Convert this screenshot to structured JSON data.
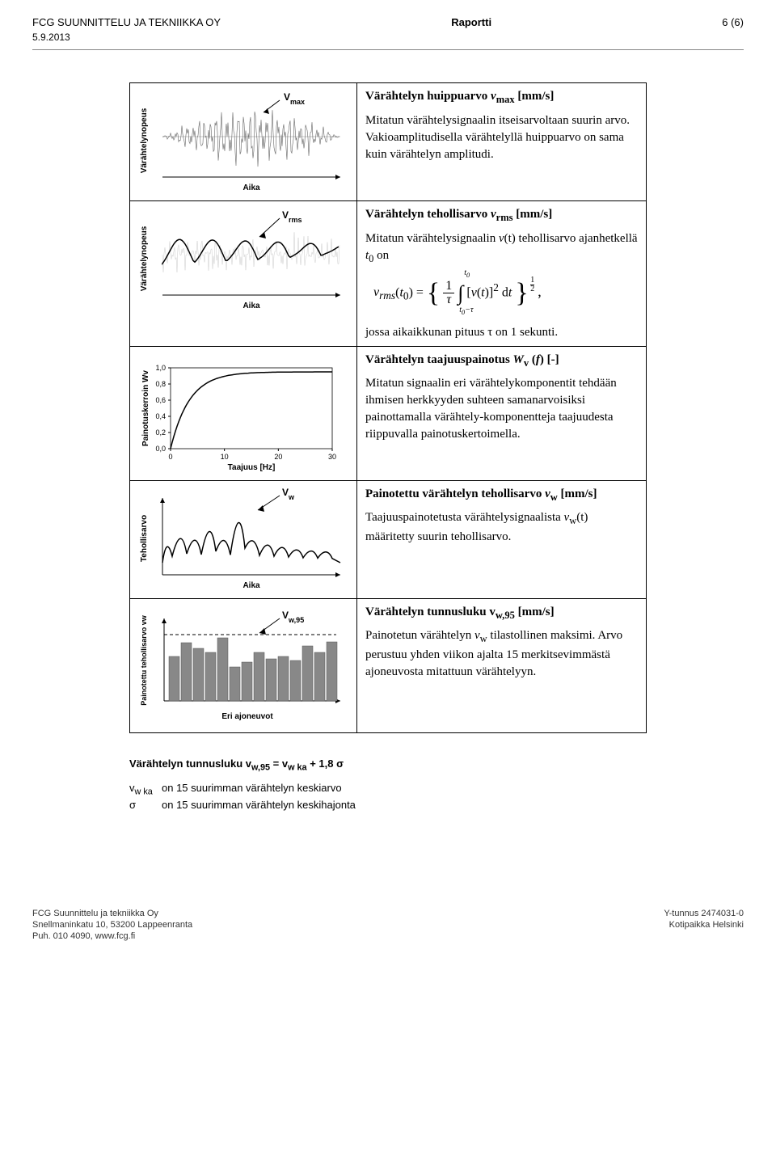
{
  "header": {
    "org": "FCG SUUNNITTELU JA TEKNIIKKA OY",
    "doc_type": "Raportti",
    "page": "6 (6)",
    "date": "5.9.2013"
  },
  "rows": [
    {
      "chart": {
        "type": "waveform",
        "ylabel": "Värähtelynopeus",
        "xlabel": "Aika",
        "annotation": "Vmax",
        "annotation_sub": "max"
      },
      "title_html": "Värähtelyn huippuarvo <span class='ital'>v</span><sub>max</sub> [mm/s]",
      "body_html": "Mitatun värähtelysignaalin itseisarvoltaan suurin arvo. Vakioamplitudisella värähtelyllä huippuarvo on sama kuin värähtelyn amplitudi."
    },
    {
      "chart": {
        "type": "rms",
        "ylabel": "Värähtelynopeus",
        "xlabel": "Aika",
        "annotation": "Vrms",
        "annotation_sub": "rms"
      },
      "title_html": "Värähtelyn tehollisarvo <span class='ital'>v</span><sub>rms</sub> [mm/s]",
      "body_html": "Mitatun värähtelysignaalin <span class='ital'>v</span>(t) tehollisarvo ajanhetkellä <span class='ital'>t</span><sub>0</sub> on",
      "has_formula": true,
      "tail": "jossa aikaikkunan pituus τ on 1 sekunti."
    },
    {
      "chart": {
        "type": "curve",
        "ylabel": "Painotuskerroin Wv",
        "xlabel": "Taajuus  [Hz]",
        "xticks": [
          "0",
          "10",
          "20",
          "30"
        ],
        "yticks": [
          "0,0",
          "0,2",
          "0,4",
          "0,6",
          "0,8",
          "1,0"
        ]
      },
      "title_html": "Värähtelyn taajuuspainotus <span class='ital'>W</span><sub>v</sub> (<span class='ital'>f</span>) [-]",
      "body_html": "Mitatun signaalin eri värähtelykomponentit tehdään ihmisen herkkyyden suhteen samanarvoisiksi painottamalla värähtely-komponentteja taajuudesta riippuvalla painotuskertoimella."
    },
    {
      "chart": {
        "type": "peak",
        "ylabel": "Tehollisarvo",
        "xlabel": "Aika",
        "annotation": "Vw",
        "annotation_sub": "w"
      },
      "title_html": "Painotettu värähtelyn tehollisarvo <span class='ital'>v</span><sub>w</sub> [mm/s]",
      "body_html": "Taajuuspainotetusta värähtelysignaalista <span class='ital'>v</span><sub>w</sub>(t) määritetty suurin tehollisarvo."
    },
    {
      "chart": {
        "type": "bar",
        "ylabel": "Painotettu tehollisarvo  vw",
        "xlabel": "Eri ajoneuvot",
        "annotation": "Vw,95",
        "bars": [
          55,
          72,
          65,
          60,
          78,
          42,
          48,
          60,
          52,
          55,
          50,
          68,
          60,
          73
        ]
      },
      "title_html": "Värähtelyn tunnusluku v<sub>w,95</sub> [mm/s]",
      "body_html": "Painotetun värähtelyn <span class='ital'>v</span><sub>w</sub> tilastollinen maksimi. Arvo perustuu yhden viikon ajalta 15 merkitsevimmästä ajoneuvosta mitattuun värähtelyyn."
    }
  ],
  "formula": {
    "line": "Värähtelyn tunnusluku v<sub>w,95</sub> = v<sub>w ka</sub> + 1,8 σ",
    "def1_sym": "v<sub>w ka</sub>",
    "def1_txt": "on 15 suurimman värähtelyn keskiarvo",
    "def2_sym": "σ",
    "def2_txt": "on 15 suurimman värähtelyn keskihajonta"
  },
  "footer": {
    "l1": "FCG Suunnittelu ja tekniikka Oy",
    "l2": "Snellmaninkatu 10, 53200 Lappeenranta",
    "l3": "Puh. 010 4090, www.fcg.fi",
    "r1": "Y-tunnus 2474031-0",
    "r2": "Kotipaikka Helsinki"
  }
}
